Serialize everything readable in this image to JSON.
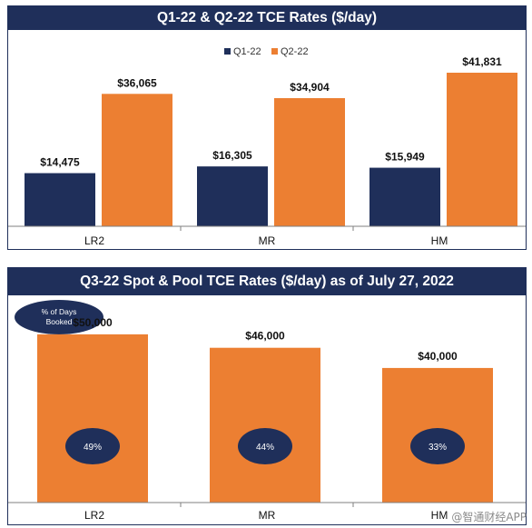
{
  "colors": {
    "navy": "#1f2f5a",
    "orange": "#ec7f32",
    "axis": "#7f7f7f"
  },
  "watermark": "@智通财经APP",
  "chart_data": [
    {
      "type": "bar",
      "title": "Q1-22 & Q2-22 TCE Rates ($/day)",
      "categories": [
        "LR2",
        "MR",
        "HM"
      ],
      "series": [
        {
          "name": "Q1-22",
          "values": [
            14475,
            16305,
            15949
          ],
          "labels": [
            "$14,475",
            "$16,305",
            "$15,949"
          ]
        },
        {
          "name": "Q2-22",
          "values": [
            36065,
            34904,
            41831
          ],
          "labels": [
            "$36,065",
            "$34,904",
            "$41,831"
          ]
        }
      ],
      "ylim": [
        0,
        50000
      ],
      "legend": "top-center",
      "grid": false
    },
    {
      "type": "bar",
      "title": "Q3-22 Spot & Pool TCE Rates ($/day) as of July 27, 2022",
      "categories": [
        "LR2",
        "MR",
        "HM"
      ],
      "values": [
        50000,
        46000,
        40000
      ],
      "labels": [
        "$50,000",
        "$46,000",
        "$40,000"
      ],
      "booked_percent": [
        49,
        44,
        33
      ],
      "booked_labels": [
        "49%",
        "44%",
        "33%"
      ],
      "booked_legend": "% of Days Booked",
      "ylim": [
        0,
        54000
      ],
      "grid": false
    }
  ]
}
